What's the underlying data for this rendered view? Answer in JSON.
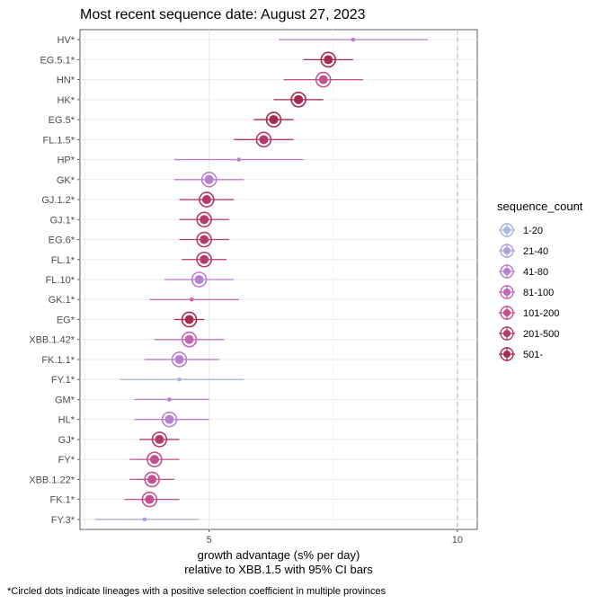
{
  "chart_data": {
    "type": "scatter",
    "title": "Most recent sequence date: August 27, 2023",
    "xlabel": "growth advantage (s% per day)",
    "xlabel2": "relative to  XBB.1.5  with 95% CI bars",
    "caption": "*Circled dots indicate lineages with a positive selection coefficient in multiple provinces",
    "xlim": [
      2.4,
      10.4
    ],
    "x_ticks": [
      5,
      10
    ],
    "reference_line": 10,
    "grid": true,
    "legend": {
      "title": "sequence_count",
      "position": "right",
      "items": [
        {
          "label": "1-20",
          "color": "#a9b7e0"
        },
        {
          "label": "21-40",
          "color": "#b09fdb"
        },
        {
          "label": "41-80",
          "color": "#b87fce"
        },
        {
          "label": "81-100",
          "color": "#c466b3"
        },
        {
          "label": "101-200",
          "color": "#c4508f"
        },
        {
          "label": "201-500",
          "color": "#b63a6c"
        },
        {
          "label": "501-",
          "color": "#a8294d"
        }
      ]
    },
    "points": [
      {
        "lineage": "HV*",
        "x": 7.9,
        "lo": 6.4,
        "hi": 9.4,
        "count_bin": "41-80",
        "circled": false
      },
      {
        "lineage": "EG.5.1*",
        "x": 7.4,
        "lo": 6.9,
        "hi": 7.9,
        "count_bin": "501-",
        "circled": true
      },
      {
        "lineage": "HN*",
        "x": 7.3,
        "lo": 6.5,
        "hi": 8.1,
        "count_bin": "101-200",
        "circled": true
      },
      {
        "lineage": "HK*",
        "x": 6.8,
        "lo": 6.3,
        "hi": 7.3,
        "count_bin": "501-",
        "circled": true
      },
      {
        "lineage": "EG.5*",
        "x": 6.3,
        "lo": 5.9,
        "hi": 6.7,
        "count_bin": "501-",
        "circled": true
      },
      {
        "lineage": "FL.1.5*",
        "x": 6.1,
        "lo": 5.5,
        "hi": 6.7,
        "count_bin": "201-500",
        "circled": true
      },
      {
        "lineage": "HP*",
        "x": 5.6,
        "lo": 4.3,
        "hi": 6.9,
        "count_bin": "41-80",
        "circled": false
      },
      {
        "lineage": "GK*",
        "x": 5.0,
        "lo": 4.3,
        "hi": 5.7,
        "count_bin": "41-80",
        "circled": true
      },
      {
        "lineage": "GJ.1.2*",
        "x": 4.95,
        "lo": 4.4,
        "hi": 5.5,
        "count_bin": "201-500",
        "circled": true
      },
      {
        "lineage": "GJ.1*",
        "x": 4.9,
        "lo": 4.4,
        "hi": 5.4,
        "count_bin": "201-500",
        "circled": true
      },
      {
        "lineage": "EG.6*",
        "x": 4.9,
        "lo": 4.4,
        "hi": 5.4,
        "count_bin": "201-500",
        "circled": true
      },
      {
        "lineage": "FL.1*",
        "x": 4.9,
        "lo": 4.45,
        "hi": 5.35,
        "count_bin": "201-500",
        "circled": true
      },
      {
        "lineage": "FL.10*",
        "x": 4.8,
        "lo": 4.1,
        "hi": 5.5,
        "count_bin": "41-80",
        "circled": true
      },
      {
        "lineage": "GK.1*",
        "x": 4.65,
        "lo": 3.8,
        "hi": 5.6,
        "count_bin": "81-100",
        "circled": false
      },
      {
        "lineage": "EG*",
        "x": 4.6,
        "lo": 4.3,
        "hi": 4.9,
        "count_bin": "501-",
        "circled": true
      },
      {
        "lineage": "XBB.1.42*",
        "x": 4.6,
        "lo": 3.9,
        "hi": 5.3,
        "count_bin": "81-100",
        "circled": true
      },
      {
        "lineage": "FK.1.1*",
        "x": 4.4,
        "lo": 3.7,
        "hi": 5.2,
        "count_bin": "41-80",
        "circled": true
      },
      {
        "lineage": "FY.1*",
        "x": 4.4,
        "lo": 3.2,
        "hi": 5.7,
        "count_bin": "1-20",
        "circled": false
      },
      {
        "lineage": "GM*",
        "x": 4.2,
        "lo": 3.5,
        "hi": 5.0,
        "count_bin": "41-80",
        "circled": false
      },
      {
        "lineage": "HL*",
        "x": 4.2,
        "lo": 3.5,
        "hi": 5.0,
        "count_bin": "41-80",
        "circled": true
      },
      {
        "lineage": "GJ*",
        "x": 4.0,
        "lo": 3.6,
        "hi": 4.4,
        "count_bin": "201-500",
        "circled": true
      },
      {
        "lineage": "FY*",
        "x": 3.9,
        "lo": 3.4,
        "hi": 4.4,
        "count_bin": "101-200",
        "circled": true
      },
      {
        "lineage": "XBB.1.22*",
        "x": 3.85,
        "lo": 3.4,
        "hi": 4.3,
        "count_bin": "101-200",
        "circled": true
      },
      {
        "lineage": "FK.1*",
        "x": 3.8,
        "lo": 3.3,
        "hi": 4.4,
        "count_bin": "101-200",
        "circled": true
      },
      {
        "lineage": "FY.3*",
        "x": 3.7,
        "lo": 2.7,
        "hi": 4.8,
        "count_bin": "21-40",
        "circled": false
      }
    ]
  }
}
